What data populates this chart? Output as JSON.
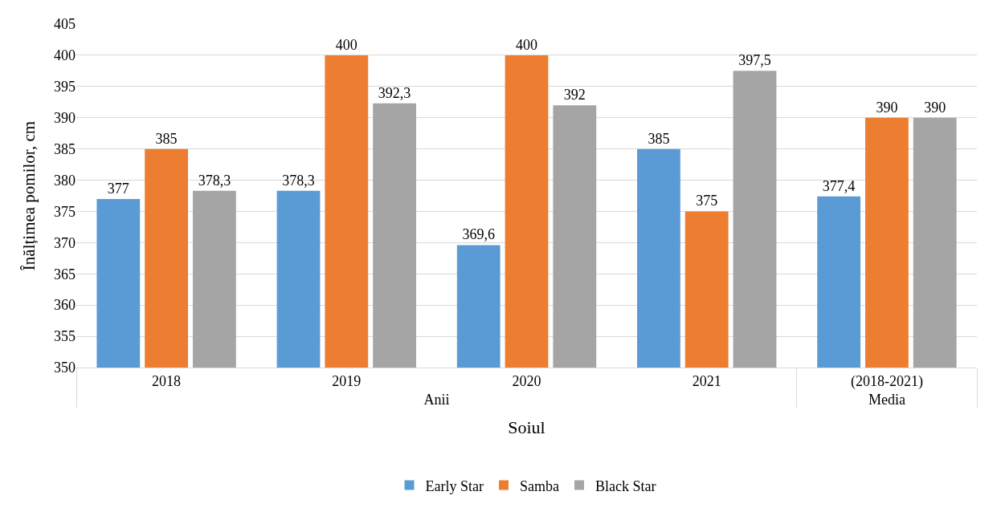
{
  "chart_data": {
    "type": "bar",
    "xlabel": "Soiul",
    "ylabel": "Înălțimea pomilor, cm",
    "categories": [
      "2018",
      "2019",
      "2020",
      "2021",
      "(2018-2021)"
    ],
    "annotations": [
      "Anii",
      "Media"
    ],
    "series": [
      {
        "name": "Early Star",
        "color": "#5b9bd5",
        "values": [
          377,
          378.3,
          369.6,
          385,
          377.4
        ],
        "value_labels": [
          "377",
          "378,3",
          "369,6",
          "385",
          "377,4"
        ]
      },
      {
        "name": "Samba",
        "color": "#ed7d31",
        "values": [
          385,
          400,
          400,
          375,
          390
        ],
        "value_labels": [
          "385",
          "400",
          "400",
          "375",
          "390"
        ]
      },
      {
        "name": "Black Star",
        "color": "#a5a5a5",
        "values": [
          378.3,
          392.3,
          392,
          397.5,
          390
        ],
        "value_labels": [
          "378,3",
          "392,3",
          "392",
          "397,5",
          "390"
        ]
      }
    ],
    "ylim": [
      350,
      405
    ],
    "yticks": [
      350,
      355,
      360,
      365,
      370,
      375,
      380,
      385,
      390,
      395,
      400,
      405
    ],
    "grid": "y",
    "legend": "bottom"
  }
}
